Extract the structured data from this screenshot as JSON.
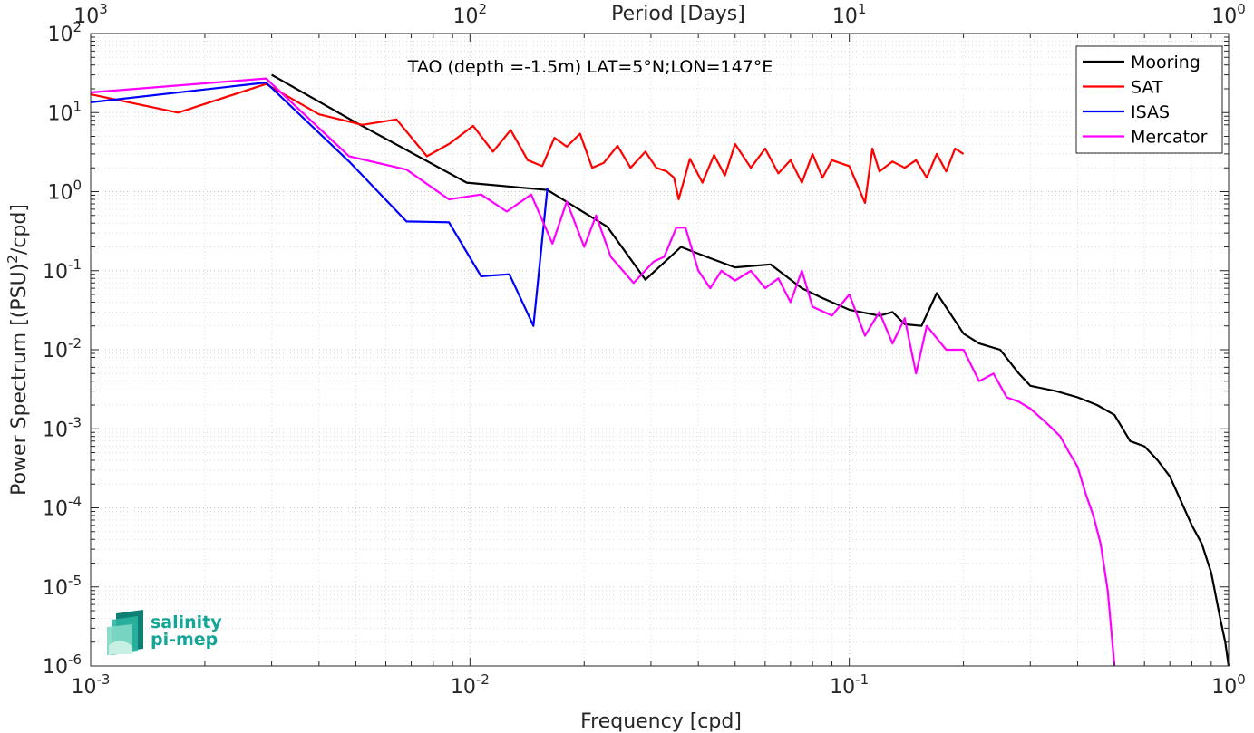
{
  "chart_data": {
    "type": "line",
    "title": "TAO (depth =-1.5m) LAT=5°N;LON=147°E",
    "xlabel": "Frequency [cpd]",
    "ylabel_main": "Power Spectrum [(PSU)",
    "ylabel_sup": "2",
    "ylabel_tail": "/cpd]",
    "top_xlabel": "Period [Days]",
    "x_scale": "log",
    "y_scale": "log",
    "xlim": [
      0.001,
      1
    ],
    "ylim": [
      1e-06,
      100
    ],
    "grid": true,
    "legend_position": "top-right",
    "x_ticks": [
      {
        "base": "10",
        "exp": "-3",
        "value": 0.001
      },
      {
        "base": "10",
        "exp": "-2",
        "value": 0.01
      },
      {
        "base": "10",
        "exp": "-1",
        "value": 0.1
      },
      {
        "base": "10",
        "exp": "0",
        "value": 1
      }
    ],
    "top_ticks": [
      {
        "base": "10",
        "exp": "3",
        "value": 0.001
      },
      {
        "base": "10",
        "exp": "2",
        "value": 0.01
      },
      {
        "base": "10",
        "exp": "1",
        "value": 0.1
      },
      {
        "base": "10",
        "exp": "0",
        "value": 1
      }
    ],
    "y_ticks": [
      {
        "base": "10",
        "exp": "2",
        "value": 100
      },
      {
        "base": "10",
        "exp": "1",
        "value": 10
      },
      {
        "base": "10",
        "exp": "0",
        "value": 1
      },
      {
        "base": "10",
        "exp": "-1",
        "value": 0.1
      },
      {
        "base": "10",
        "exp": "-2",
        "value": 0.01
      },
      {
        "base": "10",
        "exp": "-3",
        "value": 0.001
      },
      {
        "base": "10",
        "exp": "-4",
        "value": 0.0001
      },
      {
        "base": "10",
        "exp": "-5",
        "value": 1e-05
      },
      {
        "base": "10",
        "exp": "-6",
        "value": 1e-06
      }
    ],
    "series": [
      {
        "name": "Mooring",
        "color": "#000000",
        "points": [
          [
            0.003,
            30
          ],
          [
            0.005,
            7.5
          ],
          [
            0.0098,
            1.3
          ],
          [
            0.016,
            1.05
          ],
          [
            0.023,
            0.36
          ],
          [
            0.029,
            0.077
          ],
          [
            0.036,
            0.2
          ],
          [
            0.042,
            0.15
          ],
          [
            0.05,
            0.11
          ],
          [
            0.062,
            0.12
          ],
          [
            0.075,
            0.06
          ],
          [
            0.085,
            0.045
          ],
          [
            0.1,
            0.032
          ],
          [
            0.12,
            0.027
          ],
          [
            0.13,
            0.03
          ],
          [
            0.14,
            0.021
          ],
          [
            0.155,
            0.02
          ],
          [
            0.17,
            0.052
          ],
          [
            0.2,
            0.016
          ],
          [
            0.22,
            0.012
          ],
          [
            0.25,
            0.01
          ],
          [
            0.28,
            0.005
          ],
          [
            0.3,
            0.0035
          ],
          [
            0.35,
            0.003
          ],
          [
            0.4,
            0.0025
          ],
          [
            0.45,
            0.002
          ],
          [
            0.5,
            0.0015
          ],
          [
            0.55,
            0.0007
          ],
          [
            0.6,
            0.0006
          ],
          [
            0.65,
            0.0004
          ],
          [
            0.7,
            0.00025
          ],
          [
            0.75,
            0.00012
          ],
          [
            0.8,
            6e-05
          ],
          [
            0.85,
            3.5e-05
          ],
          [
            0.9,
            1.5e-05
          ],
          [
            0.95,
            4e-06
          ],
          [
            0.98,
            2e-06
          ],
          [
            1.0,
            1e-06
          ]
        ]
      },
      {
        "name": "SAT",
        "color": "#ff0000",
        "points": [
          [
            0.001,
            17
          ],
          [
            0.0017,
            10
          ],
          [
            0.0029,
            23
          ],
          [
            0.004,
            9.5
          ],
          [
            0.0052,
            7.0
          ],
          [
            0.0064,
            8.2
          ],
          [
            0.0077,
            2.8
          ],
          [
            0.0088,
            4.0
          ],
          [
            0.0102,
            6.8
          ],
          [
            0.0115,
            3.2
          ],
          [
            0.0128,
            6.0
          ],
          [
            0.0142,
            2.5
          ],
          [
            0.0155,
            2.1
          ],
          [
            0.0167,
            4.8
          ],
          [
            0.018,
            3.7
          ],
          [
            0.0195,
            5.4
          ],
          [
            0.021,
            2.0
          ],
          [
            0.0225,
            2.3
          ],
          [
            0.0245,
            3.8
          ],
          [
            0.0265,
            2.0
          ],
          [
            0.029,
            3.2
          ],
          [
            0.031,
            2.0
          ],
          [
            0.033,
            1.8
          ],
          [
            0.0345,
            1.5
          ],
          [
            0.0355,
            0.8
          ],
          [
            0.038,
            2.6
          ],
          [
            0.041,
            1.3
          ],
          [
            0.044,
            2.9
          ],
          [
            0.047,
            1.6
          ],
          [
            0.05,
            4.0
          ],
          [
            0.055,
            2.0
          ],
          [
            0.06,
            3.5
          ],
          [
            0.065,
            1.7
          ],
          [
            0.07,
            2.5
          ],
          [
            0.075,
            1.3
          ],
          [
            0.08,
            3.0
          ],
          [
            0.085,
            1.5
          ],
          [
            0.09,
            2.5
          ],
          [
            0.1,
            2.1
          ],
          [
            0.11,
            0.72
          ],
          [
            0.115,
            3.5
          ],
          [
            0.12,
            1.8
          ],
          [
            0.13,
            2.4
          ],
          [
            0.14,
            2.0
          ],
          [
            0.15,
            2.5
          ],
          [
            0.16,
            1.5
          ],
          [
            0.17,
            3.0
          ],
          [
            0.18,
            1.8
          ],
          [
            0.19,
            3.5
          ],
          [
            0.2,
            3.0
          ]
        ]
      },
      {
        "name": "ISAS",
        "color": "#0000ff",
        "points": [
          [
            0.001,
            13.5
          ],
          [
            0.0029,
            24
          ],
          [
            0.0048,
            2.4
          ],
          [
            0.0068,
            0.42
          ],
          [
            0.0088,
            0.41
          ],
          [
            0.0107,
            0.085
          ],
          [
            0.0127,
            0.09
          ],
          [
            0.0147,
            0.02
          ],
          [
            0.016,
            1.1
          ]
        ]
      },
      {
        "name": "Mercator",
        "color": "#ff00ff",
        "points": [
          [
            0.001,
            18
          ],
          [
            0.0029,
            27
          ],
          [
            0.0048,
            2.8
          ],
          [
            0.0068,
            1.9
          ],
          [
            0.0088,
            0.8
          ],
          [
            0.0107,
            0.92
          ],
          [
            0.0125,
            0.56
          ],
          [
            0.0145,
            0.92
          ],
          [
            0.0165,
            0.22
          ],
          [
            0.018,
            0.75
          ],
          [
            0.02,
            0.2
          ],
          [
            0.0215,
            0.5
          ],
          [
            0.0235,
            0.15
          ],
          [
            0.027,
            0.07
          ],
          [
            0.0305,
            0.13
          ],
          [
            0.0325,
            0.15
          ],
          [
            0.035,
            0.35
          ],
          [
            0.037,
            0.35
          ],
          [
            0.04,
            0.1
          ],
          [
            0.043,
            0.06
          ],
          [
            0.046,
            0.1
          ],
          [
            0.05,
            0.075
          ],
          [
            0.055,
            0.1
          ],
          [
            0.06,
            0.06
          ],
          [
            0.065,
            0.08
          ],
          [
            0.07,
            0.04
          ],
          [
            0.075,
            0.1
          ],
          [
            0.08,
            0.035
          ],
          [
            0.09,
            0.027
          ],
          [
            0.1,
            0.05
          ],
          [
            0.11,
            0.015
          ],
          [
            0.12,
            0.03
          ],
          [
            0.13,
            0.012
          ],
          [
            0.14,
            0.025
          ],
          [
            0.15,
            0.005
          ],
          [
            0.16,
            0.02
          ],
          [
            0.18,
            0.01
          ],
          [
            0.2,
            0.01
          ],
          [
            0.22,
            0.004
          ],
          [
            0.24,
            0.005
          ],
          [
            0.26,
            0.0025
          ],
          [
            0.28,
            0.0022
          ],
          [
            0.3,
            0.0018
          ],
          [
            0.33,
            0.0012
          ],
          [
            0.36,
            0.0008
          ],
          [
            0.38,
            0.0005
          ],
          [
            0.4,
            0.00033
          ],
          [
            0.42,
            0.00015
          ],
          [
            0.44,
            8e-05
          ],
          [
            0.46,
            3.5e-05
          ],
          [
            0.48,
            9e-06
          ],
          [
            0.49,
            3e-06
          ],
          [
            0.5,
            1e-06
          ]
        ]
      }
    ]
  },
  "logo": {
    "line1": "salinity",
    "line2": "pi-mep"
  }
}
